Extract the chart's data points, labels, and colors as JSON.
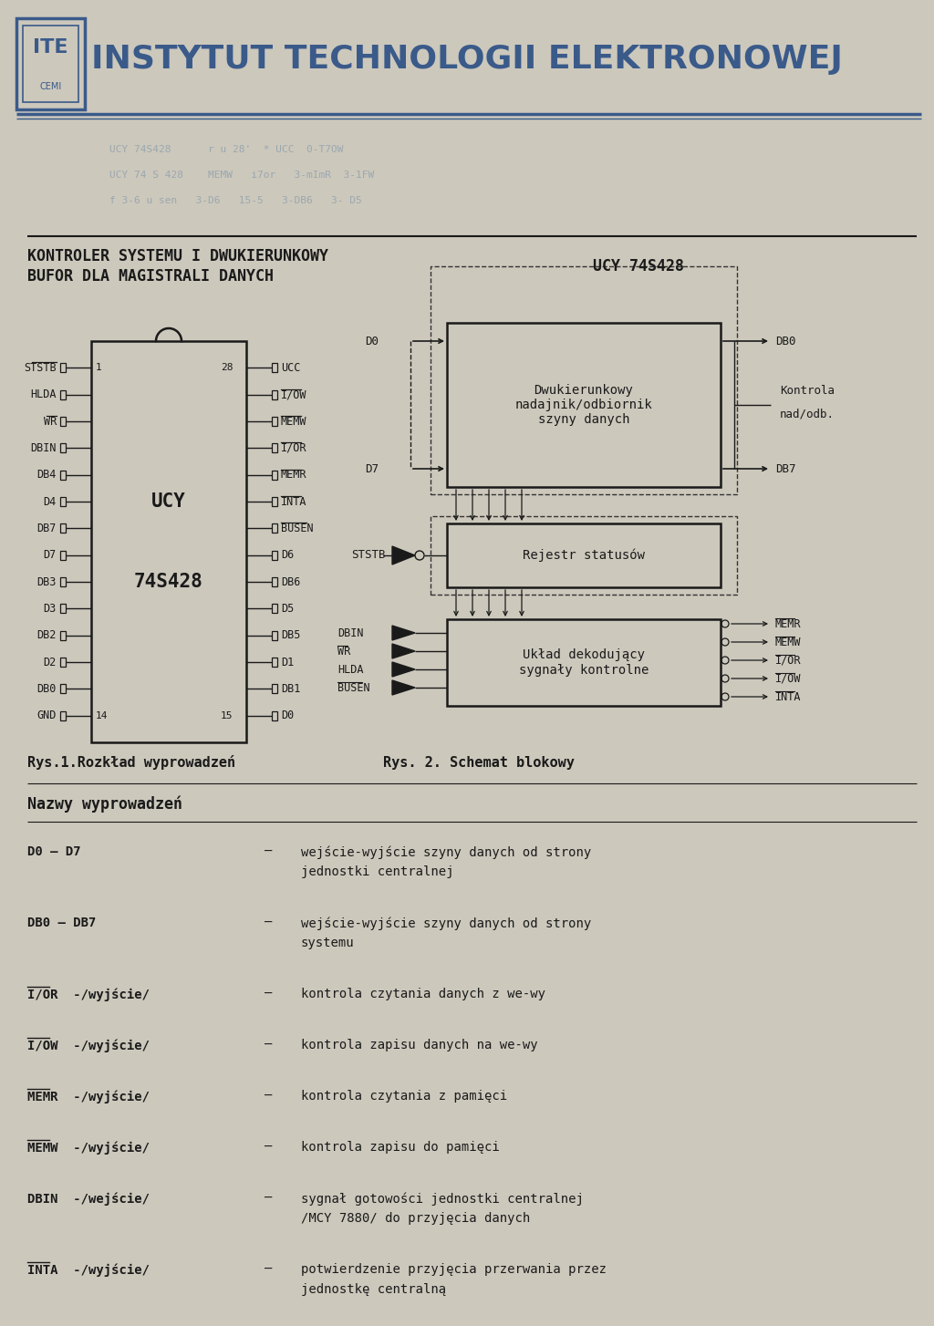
{
  "bg_color": "#ccc8bc",
  "header_color": "#3a5a8a",
  "text_color": "#1a1a1a",
  "title_line1": "KONTROLER SYSTEMU I DWUKIERUNKOWY",
  "title_line2": "BUFOR DLA MAGISTRALI DANYCH",
  "title_right": "UCY 74S428",
  "fig_caption_left": "Rys.1.Rozkład wyprowadzeń",
  "fig_caption_right": "Rys. 2. Schemat blokowy",
  "section_title": "Nazwy wyprowadzeń",
  "definitions": [
    [
      "D0 – D7",
      "wejście-wyjście szyny danych od strony\njednostki centralnej"
    ],
    [
      "DB0 – DB7",
      "wejście-wyjście szyny danych od strony\nsystemu"
    ],
    [
      "I/OR  -/wyjście/",
      "kontrola czytania danych z we-wy"
    ],
    [
      "I/OW  -/wyjście/",
      "kontrola zapisu danych na we-wy"
    ],
    [
      "MEMR  -/wyjście/",
      "kontrola czytania z pamięci"
    ],
    [
      "MEMW  -/wyjście/",
      "kontrola zapisu do pamięci"
    ],
    [
      "DBIN  -/wejście/",
      "sygnał gotowości jednostki centralnej\n/MCY 7880/ do przyjęcia danych"
    ],
    [
      "INTA  -/wyjście/",
      "potwierdzenie przyjęcia przerwania przez\njednostkę centralną"
    ]
  ],
  "def_overline": [
    false,
    false,
    true,
    true,
    true,
    true,
    false,
    true
  ],
  "ic_pins_left": [
    "STSTB",
    "HLDA",
    "WR",
    "DBIN",
    "DB4",
    "D4",
    "DB7",
    "D7",
    "DB3",
    "D3",
    "DB2",
    "D2",
    "DB0",
    "GND"
  ],
  "ic_pins_right": [
    "UCC",
    "I/OW",
    "MEMW",
    "I/OR",
    "MEMR",
    "INTA",
    "BUSEN",
    "D6",
    "DB6",
    "D5",
    "DB5",
    "D1",
    "DB1",
    "D0"
  ],
  "ic_pin_left_overline": [
    true,
    false,
    true,
    false,
    false,
    false,
    false,
    false,
    false,
    false,
    false,
    false,
    false,
    false
  ],
  "ic_pin_right_overline": [
    false,
    true,
    true,
    true,
    true,
    true,
    true,
    false,
    false,
    false,
    false,
    false,
    false,
    false
  ],
  "ic_label1": "UCY",
  "ic_label2": "74S428",
  "block1_title": "Dwukierunkowy\nnadajnik/odbiornik\nszyny danych",
  "block2_title": "Rejestr statusów",
  "block3_title": "Układ dekodujący\nsygnały kontrolne",
  "block3_inputs": [
    "DBIN",
    "WR",
    "HLDA",
    "BUSEN"
  ],
  "block3_input_overline": [
    false,
    true,
    false,
    true
  ],
  "block3_outputs": [
    "MEMR",
    "MEMW",
    "I/OR",
    "I/OW",
    "INTA"
  ],
  "watermark_rows": [
    "UCY 74S428      r u 28'  * UCC  0-T7OW",
    "UCY 74 S 428    MEMW   i7or   3-mImR  3-1FW",
    "f 3-6 u sen   3-D6   15-5   3-DB6   3- D5"
  ]
}
